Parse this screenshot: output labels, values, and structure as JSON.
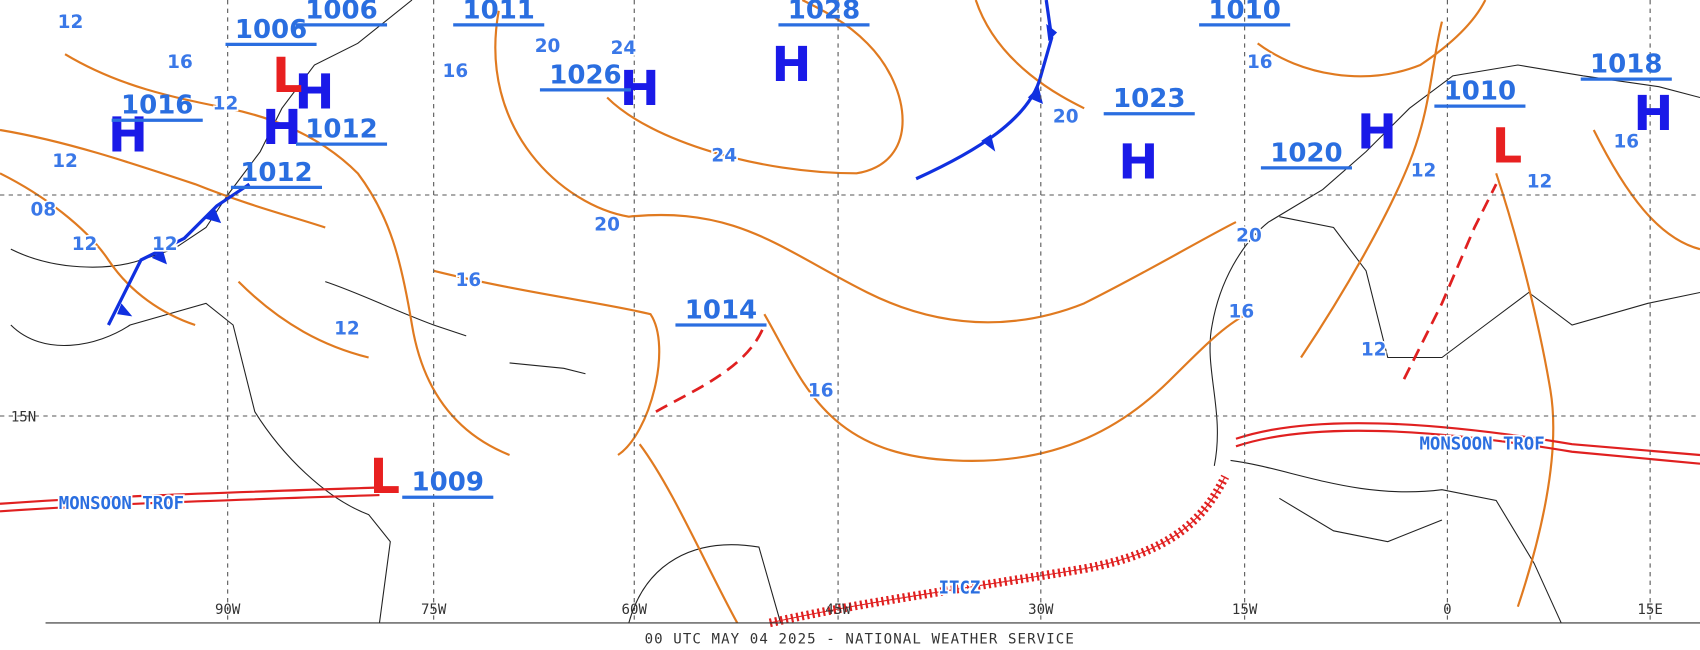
{
  "footer": "00 UTC MAY 04 2025 - NATIONAL WEATHER SERVICE",
  "longitude_labels": [
    "90W",
    "75W",
    "60W",
    "45W",
    "30W",
    "15W",
    "0",
    "15E"
  ],
  "latitude_labels": [
    "15N"
  ],
  "center_letters": [
    "H",
    "H",
    "H",
    "H",
    "H",
    "H",
    "H",
    "H",
    "L",
    "L",
    "L"
  ],
  "pressure_labels": [
    "1028",
    "1026",
    "1023",
    "1020",
    "1010",
    "1018",
    "1014",
    "1009",
    "1012",
    "1012",
    "1016",
    "1006",
    "1006",
    "1011",
    "1010"
  ],
  "isobar_labels": [
    "24",
    "20",
    "24",
    "20",
    "16",
    "16",
    "20",
    "16",
    "20",
    "16",
    "12",
    "12",
    "12",
    "16",
    "12",
    "12",
    "12",
    "12",
    "16",
    "16",
    "12",
    "08",
    "12"
  ],
  "features": [
    "MONSOON TROF",
    "MONSOON TROF",
    "ITCZ"
  ]
}
